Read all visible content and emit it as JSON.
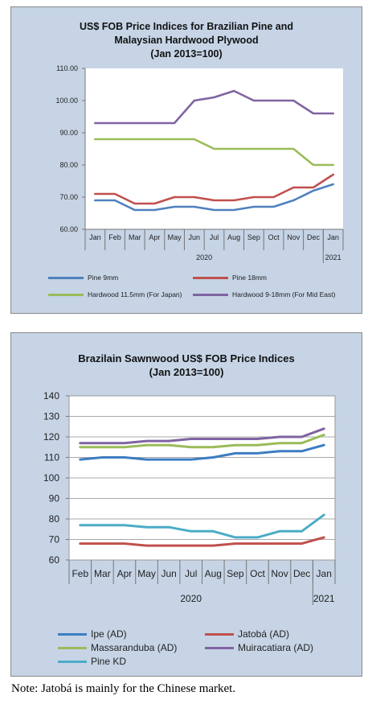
{
  "note": "Note: Jatobá is mainly for the Chinese market.",
  "chart_data": [
    {
      "type": "line",
      "title_lines": [
        "US$ FOB Price Indices for Brazilian Pine and",
        "Malaysian Hardwood Plywood",
        "(Jan 2013=100)"
      ],
      "categories": [
        "Jan",
        "Feb",
        "Mar",
        "Apr",
        "May",
        "Jun",
        "Jul",
        "Aug",
        "Sep",
        "Oct",
        "Nov",
        "Dec",
        "Jan"
      ],
      "year_labels": [
        "2020",
        "2021"
      ],
      "ylim": [
        60,
        110
      ],
      "yticks": [
        60,
        70,
        80,
        90,
        100,
        110
      ],
      "ytick_labels": [
        "60.00",
        "70.00",
        "80.00",
        "90.00",
        "100.00",
        "110.00"
      ],
      "grid": false,
      "legend_position": "bottom",
      "series": [
        {
          "name": "Pine 9mm",
          "color": "#4f81bd",
          "values": [
            69,
            69,
            66,
            66,
            67,
            67,
            66,
            66,
            67,
            67,
            69,
            72,
            74
          ]
        },
        {
          "name": "Pine 18mm",
          "color": "#c0504d",
          "values": [
            71,
            71,
            68,
            68,
            70,
            70,
            69,
            69,
            70,
            70,
            73,
            73,
            77
          ]
        },
        {
          "name": "Hardwood 11.5mm (For Japan)",
          "color": "#9bbb59",
          "values": [
            88,
            88,
            88,
            88,
            88,
            88,
            85,
            85,
            85,
            85,
            85,
            80,
            80
          ]
        },
        {
          "name": "Hardwood 9-18mm (For Mid East)",
          "color": "#8064a2",
          "values": [
            93,
            93,
            93,
            93,
            93,
            100,
            101,
            103,
            100,
            100,
            100,
            96,
            96
          ]
        }
      ]
    },
    {
      "type": "line",
      "title_lines": [
        "Brazilain Sawnwood US$ FOB Price Indices",
        "(Jan 2013=100)"
      ],
      "categories": [
        "Feb",
        "Mar",
        "Apr",
        "May",
        "Jun",
        "Jul",
        "Aug",
        "Sep",
        "Oct",
        "Nov",
        "Dec",
        "Jan"
      ],
      "year_labels": [
        "2020",
        "2021"
      ],
      "ylim": [
        60,
        140
      ],
      "yticks": [
        60,
        70,
        80,
        90,
        100,
        110,
        120,
        130,
        140
      ],
      "ytick_labels": [
        "60",
        "70",
        "80",
        "90",
        "100",
        "110",
        "120",
        "130",
        "140"
      ],
      "grid": true,
      "legend_position": "bottom",
      "series": [
        {
          "name": "Ipe (AD)",
          "color": "#3d7dc2",
          "values": [
            109,
            110,
            110,
            109,
            109,
            109,
            110,
            112,
            112,
            113,
            113,
            116
          ]
        },
        {
          "name": "Jatobá (AD)",
          "color": "#c0504d",
          "values": [
            68,
            68,
            68,
            67,
            67,
            67,
            67,
            68,
            68,
            68,
            68,
            71
          ]
        },
        {
          "name": "Massaranduba (AD)",
          "color": "#9bbb59",
          "values": [
            115,
            115,
            115,
            116,
            116,
            115,
            115,
            116,
            116,
            117,
            117,
            121
          ]
        },
        {
          "name": "Muiracatiara (AD)",
          "color": "#8064a2",
          "values": [
            117,
            117,
            117,
            118,
            118,
            119,
            119,
            119,
            119,
            120,
            120,
            124
          ]
        },
        {
          "name": "Pine KD",
          "color": "#4bacc6",
          "values": [
            77,
            77,
            77,
            76,
            76,
            74,
            74,
            71,
            71,
            74,
            74,
            82
          ]
        }
      ]
    }
  ]
}
